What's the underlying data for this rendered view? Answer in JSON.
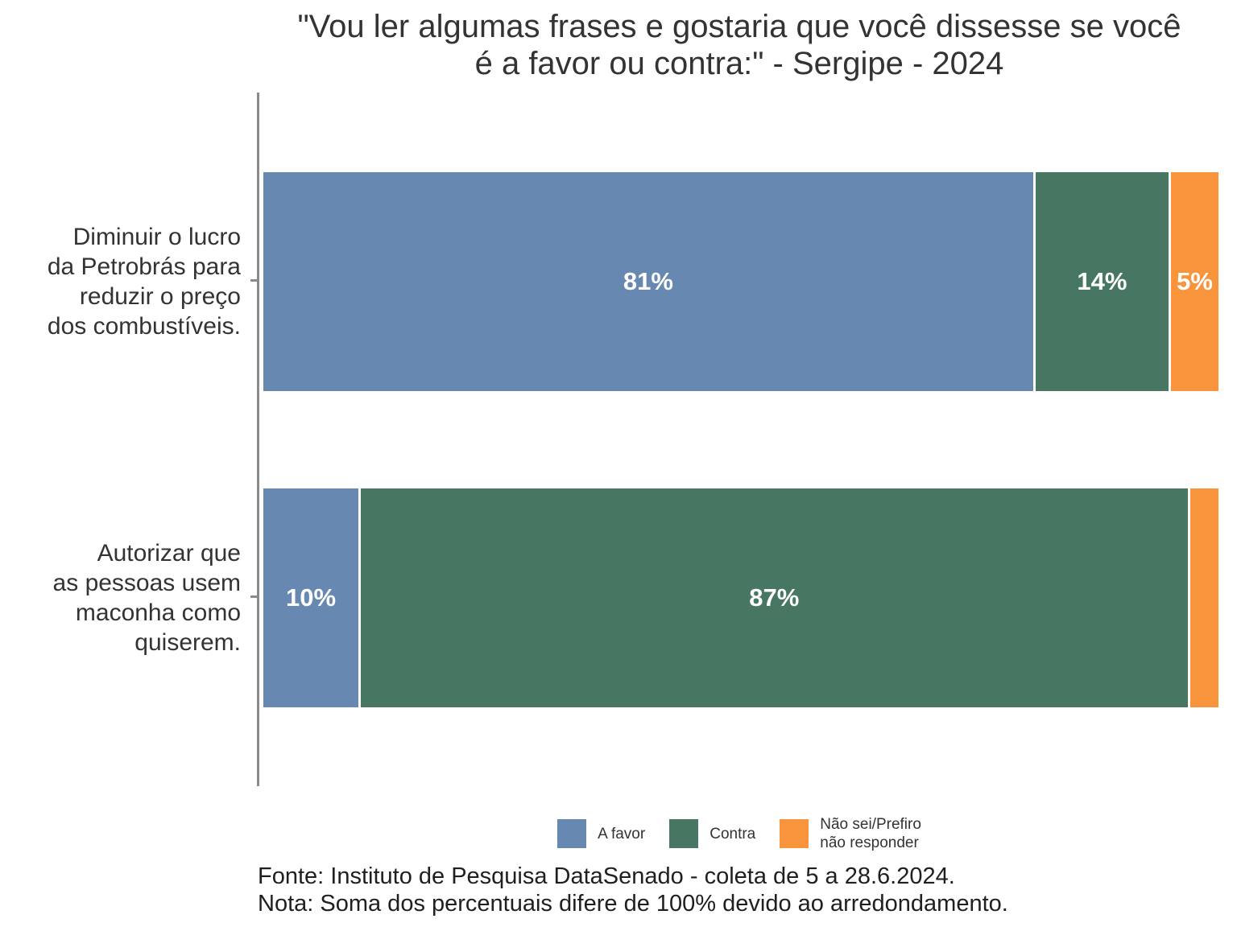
{
  "title": "\"Vou ler algumas frases e gostaria que você dissesse se você\né a favor ou contra:\" - Sergipe - 2024",
  "colors": {
    "series": [
      "#6789b1",
      "#477663",
      "#f8943c"
    ],
    "axis": "#8a8a8a",
    "segment_label": "#ffffff",
    "text": "#333333"
  },
  "bars": [
    {
      "category": "Diminuir o lucro\nda Petrobrás para\nreduzir o preço\ndos combustíveis.",
      "segments": [
        {
          "name": "A favor",
          "value": 81,
          "label": "81%"
        },
        {
          "name": "Contra",
          "value": 14,
          "label": "14%"
        },
        {
          "name": "Não sei/Prefiro não responder",
          "value": 5,
          "label": "5%"
        }
      ]
    },
    {
      "category": "Autorizar que\nas pessoas usem\nmaconha como\nquiserem.",
      "segments": [
        {
          "name": "A favor",
          "value": 10,
          "label": "10%"
        },
        {
          "name": "Contra",
          "value": 87,
          "label": "87%"
        },
        {
          "name": "Não sei/Prefiro não responder",
          "value": 3,
          "label": ""
        }
      ]
    }
  ],
  "legend": [
    {
      "label": "A favor"
    },
    {
      "label": "Contra"
    },
    {
      "label": "Não sei/Prefiro\nnão responder"
    }
  ],
  "footer": {
    "fonte": "Fonte: Instituto de Pesquisa DataSenado - coleta de 5 a 28.6.2024.",
    "nota": "Nota: Soma dos percentuais difere de 100% devido ao arredondamento."
  },
  "chart_data": {
    "type": "bar",
    "orientation": "horizontal-stacked",
    "title": "\"Vou ler algumas frases e gostaria que você dissesse se você é a favor ou contra:\" - Sergipe - 2024",
    "categories": [
      "Diminuir o lucro da Petrobrás para reduzir o preço dos combustíveis.",
      "Autorizar que as pessoas usem maconha como quiserem."
    ],
    "series": [
      {
        "name": "A favor",
        "values": [
          81,
          10
        ],
        "color": "#6789b1"
      },
      {
        "name": "Contra",
        "values": [
          14,
          87
        ],
        "color": "#477663"
      },
      {
        "name": "Não sei/Prefiro não responder",
        "values": [
          5,
          3
        ],
        "color": "#f8943c"
      }
    ],
    "unit": "%",
    "xlim": [
      0,
      100
    ],
    "grid": false,
    "legend_position": "bottom",
    "annotations": [
      "81%",
      "14%",
      "5%",
      "10%",
      "87%"
    ],
    "notes": [
      "Fonte: Instituto de Pesquisa DataSenado - coleta de 5 a 28.6.2024.",
      "Nota: Soma dos percentuais difere de 100% devido ao arredondamento."
    ]
  }
}
